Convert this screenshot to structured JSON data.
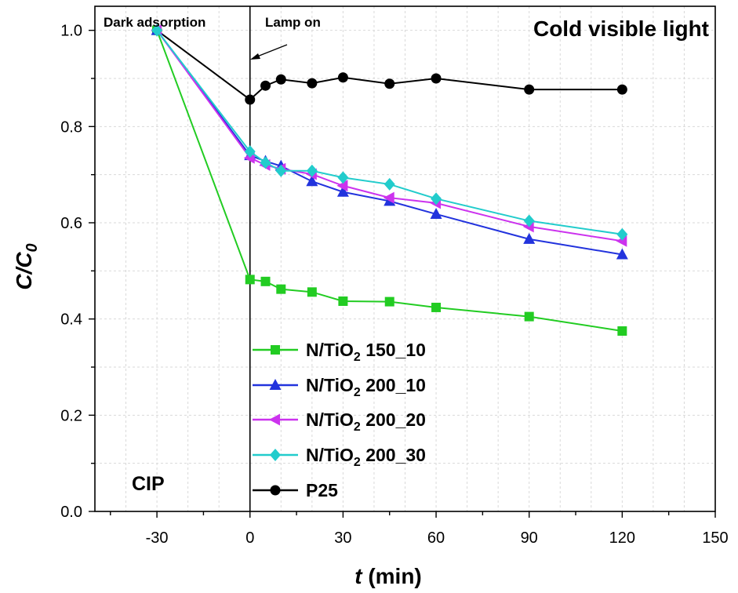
{
  "chart_data": {
    "type": "line",
    "xlabel_var": "t",
    "xlabel_unit": " (min)",
    "ylabel_var": "C/C",
    "ylabel_sub": "0",
    "xlim": [
      -50,
      150
    ],
    "ylim": [
      0,
      1.05
    ],
    "xticks": [
      -30,
      0,
      30,
      60,
      90,
      120,
      150
    ],
    "yticks": [
      0.0,
      0.2,
      0.4,
      0.6,
      0.8,
      1.0
    ],
    "ytick_labels": [
      "0.0",
      "0.2",
      "0.4",
      "0.6",
      "0.8",
      "1.0"
    ],
    "grid": true,
    "legend_position": "bottom-center",
    "annotations": {
      "dark": "Dark adsorption",
      "lamp": "Lamp on",
      "light": "Cold visible light",
      "cip": "CIP"
    },
    "series": [
      {
        "label_main": "N/TiO",
        "label_sub": "2",
        "label_tail": " 150_10",
        "color": "#22cc22",
        "marker": "square",
        "x": [
          -30,
          0,
          5,
          10,
          20,
          30,
          45,
          60,
          90,
          120
        ],
        "y": [
          1.0,
          0.482,
          0.478,
          0.462,
          0.456,
          0.437,
          0.436,
          0.424,
          0.405,
          0.375
        ]
      },
      {
        "label_main": "N/TiO",
        "label_sub": "2",
        "label_tail": " 200_10",
        "color": "#2233dd",
        "marker": "triangle-up",
        "x": [
          -30,
          0,
          5,
          10,
          20,
          30,
          45,
          60,
          90,
          120
        ],
        "y": [
          1.0,
          0.74,
          0.728,
          0.718,
          0.686,
          0.664,
          0.645,
          0.618,
          0.566,
          0.534
        ]
      },
      {
        "label_main": "N/TiO",
        "label_sub": "2",
        "label_tail": " 200_20",
        "color": "#cc33ee",
        "marker": "triangle-left",
        "x": [
          -30,
          0,
          5,
          10,
          20,
          30,
          45,
          60,
          90,
          120
        ],
        "y": [
          1.0,
          0.735,
          0.72,
          0.712,
          0.701,
          0.677,
          0.652,
          0.641,
          0.592,
          0.562
        ]
      },
      {
        "label_main": "N/TiO",
        "label_sub": "2",
        "label_tail": " 200_30",
        "color": "#22cccc",
        "marker": "diamond",
        "x": [
          -30,
          0,
          5,
          10,
          20,
          30,
          45,
          60,
          90,
          120
        ],
        "y": [
          1.0,
          0.748,
          0.725,
          0.708,
          0.708,
          0.694,
          0.68,
          0.65,
          0.604,
          0.576
        ]
      },
      {
        "label_main": "P25",
        "label_sub": "",
        "label_tail": "",
        "color": "#000000",
        "marker": "circle",
        "x": [
          -30,
          0,
          5,
          10,
          20,
          30,
          45,
          60,
          90,
          120
        ],
        "y": [
          1.0,
          0.856,
          0.885,
          0.898,
          0.89,
          0.902,
          0.889,
          0.9,
          0.877,
          0.877
        ]
      }
    ]
  }
}
